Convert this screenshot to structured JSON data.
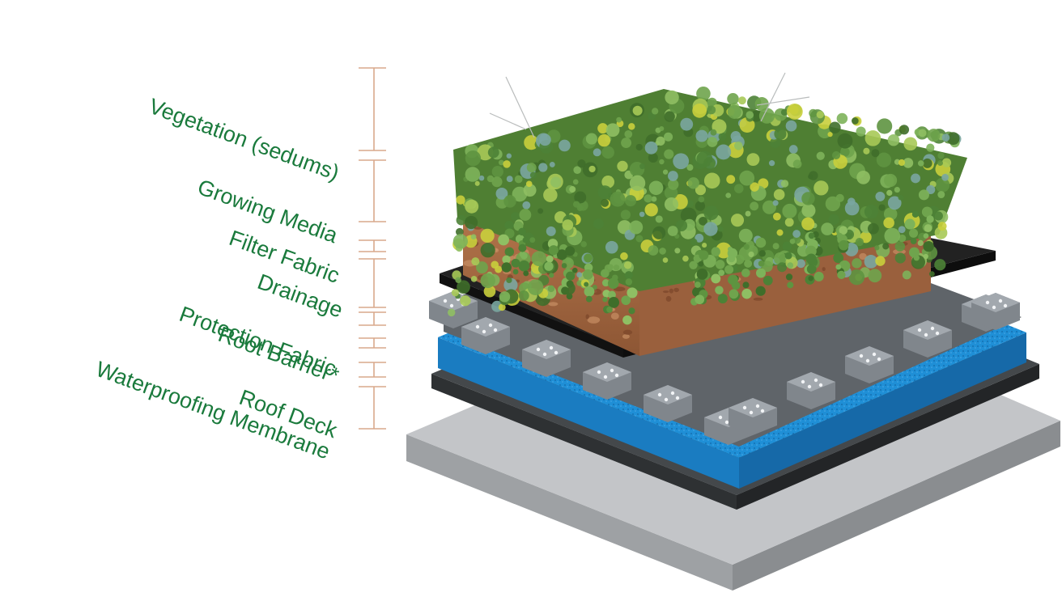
{
  "layers": [
    {
      "id": "vegetation",
      "label": "Vegetation (sedums)"
    },
    {
      "id": "growing-media",
      "label": "Growing Media"
    },
    {
      "id": "filter-fabric",
      "label": "Filter Fabric"
    },
    {
      "id": "drainage",
      "label": "Drainage"
    },
    {
      "id": "protection-fabric",
      "label": "Protection Fabric"
    },
    {
      "id": "root-barrier",
      "label": "Root Barrier*"
    },
    {
      "id": "waterproofing-membrane",
      "label": "Waterproofing Membrane"
    },
    {
      "id": "roof-deck",
      "label": "Roof Deck"
    }
  ],
  "colors": {
    "label_text": "#1a7a3c",
    "bracket": "#d9a98c",
    "roof_deck": "#b8babd",
    "waterproofing": "#3c3f42",
    "root_barrier": "#1f8fd6",
    "drainage": "#6e7378",
    "filter_fabric": "#1c1c1c",
    "growing_media": "#a86b45",
    "vegetation": "#5f8f3e"
  }
}
